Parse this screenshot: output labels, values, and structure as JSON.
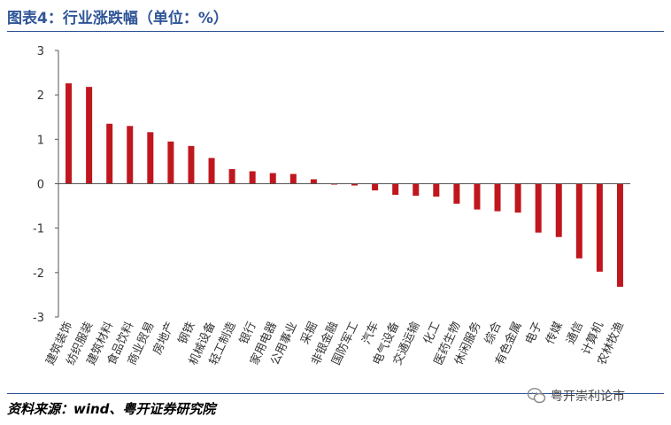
{
  "header": {
    "title": "图表4：行业涨跌幅（单位：%）"
  },
  "footer": {
    "source": "资料来源：wind、粤开证券研究院"
  },
  "watermark": {
    "text": "粤开崇利论市"
  },
  "colors": {
    "bar": "#c0171f",
    "title": "#2f5597",
    "axis": "#555555"
  },
  "chart_data": {
    "type": "bar",
    "categories": [
      "建筑装饰",
      "纺织服装",
      "建筑材料",
      "食品饮料",
      "商业贸易",
      "房地产",
      "钢铁",
      "机械设备",
      "轻工制造",
      "银行",
      "家用电器",
      "公用事业",
      "采掘",
      "非银金融",
      "国防军工",
      "汽车",
      "电气设备",
      "交通运输",
      "化工",
      "医药生物",
      "休闲服务",
      "综合",
      "有色金属",
      "电子",
      "传媒",
      "通信",
      "计算机",
      "农林牧渔"
    ],
    "values": [
      2.26,
      2.18,
      1.35,
      1.3,
      1.16,
      0.95,
      0.85,
      0.58,
      0.33,
      0.28,
      0.24,
      0.22,
      0.1,
      -0.02,
      -0.04,
      -0.15,
      -0.25,
      -0.27,
      -0.29,
      -0.45,
      -0.58,
      -0.62,
      -0.65,
      -1.1,
      -1.2,
      -1.68,
      -1.98,
      -2.32
    ],
    "yticks": [
      3,
      2,
      1,
      0,
      -1,
      -2,
      -3
    ],
    "ylim": [
      -3,
      3
    ],
    "grid": false,
    "legend": "none"
  }
}
